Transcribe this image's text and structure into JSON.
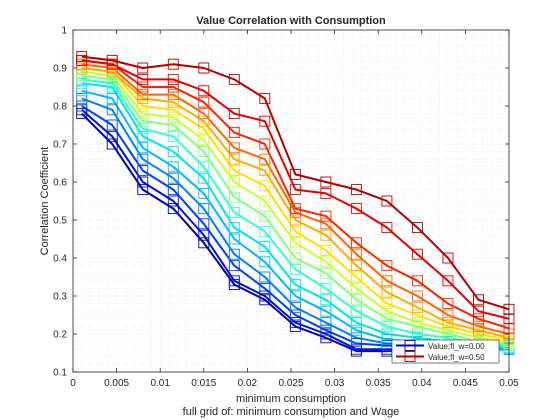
{
  "chart_data": {
    "type": "line",
    "title": "Value Correlation with Consumption",
    "xlabel": "minimum consumption",
    "ylabel": "Correlation Coefficient",
    "caption": "full grid of: minimum consumption and Wage",
    "xlim": [
      0,
      0.05
    ],
    "ylim": [
      0.1,
      1
    ],
    "xticks": [
      0,
      0.005,
      0.01,
      0.015,
      0.02,
      0.025,
      0.03,
      0.035,
      0.04,
      0.045,
      0.05
    ],
    "xtick_labels": [
      "0",
      "0.005",
      "0.01",
      "0.015",
      "0.02",
      "0.025",
      "0.03",
      "0.035",
      "0.04",
      "0.045",
      "0.05"
    ],
    "yticks": [
      0.1,
      0.2,
      0.3,
      0.4,
      0.5,
      0.6,
      0.7,
      0.8,
      0.9,
      1
    ],
    "ytick_labels": [
      "0.1",
      "0.2",
      "0.3",
      "0.4",
      "0.5",
      "0.6",
      "0.7",
      "0.8",
      "0.9",
      "1"
    ],
    "grid": "minor-dotted",
    "legend_position": "bottom-right",
    "legend": [
      "Value;fl_w=0.00",
      "Value;fl_w=0.50"
    ],
    "x": [
      0.001,
      0.0045,
      0.008,
      0.0115,
      0.015,
      0.0185,
      0.022,
      0.0255,
      0.029,
      0.0325,
      0.036,
      0.0395,
      0.043,
      0.0465,
      0.05
    ],
    "series": [
      {
        "color": "#0000b3",
        "values": [
          0.78,
          0.7,
          0.58,
          0.53,
          0.44,
          0.33,
          0.29,
          0.22,
          0.19,
          0.155,
          0.155,
          0.16,
          0.16,
          0.16,
          0.16
        ]
      },
      {
        "color": "#0010e0",
        "values": [
          0.79,
          0.72,
          0.6,
          0.55,
          0.46,
          0.34,
          0.3,
          0.23,
          0.2,
          0.16,
          0.16,
          0.165,
          0.165,
          0.16,
          0.16
        ]
      },
      {
        "color": "#0040ff",
        "values": [
          0.8,
          0.75,
          0.63,
          0.58,
          0.49,
          0.38,
          0.32,
          0.25,
          0.21,
          0.175,
          0.17,
          0.17,
          0.165,
          0.16,
          0.16
        ]
      },
      {
        "color": "#0080ff",
        "values": [
          0.82,
          0.79,
          0.66,
          0.61,
          0.53,
          0.41,
          0.35,
          0.27,
          0.23,
          0.19,
          0.175,
          0.175,
          0.17,
          0.16,
          0.16
        ]
      },
      {
        "color": "#00b8ff",
        "values": [
          0.84,
          0.82,
          0.69,
          0.64,
          0.57,
          0.45,
          0.39,
          0.3,
          0.26,
          0.21,
          0.185,
          0.18,
          0.17,
          0.165,
          0.16
        ]
      },
      {
        "color": "#00e5e5",
        "values": [
          0.86,
          0.85,
          0.72,
          0.68,
          0.61,
          0.48,
          0.43,
          0.33,
          0.29,
          0.23,
          0.2,
          0.19,
          0.18,
          0.17,
          0.165
        ]
      },
      {
        "color": "#33ffcc",
        "values": [
          0.87,
          0.86,
          0.74,
          0.72,
          0.64,
          0.52,
          0.47,
          0.37,
          0.32,
          0.26,
          0.22,
          0.2,
          0.19,
          0.175,
          0.17
        ]
      },
      {
        "color": "#80ff80",
        "values": [
          0.88,
          0.87,
          0.76,
          0.75,
          0.68,
          0.56,
          0.51,
          0.4,
          0.36,
          0.29,
          0.24,
          0.22,
          0.2,
          0.18,
          0.175
        ]
      },
      {
        "color": "#c8ff33",
        "values": [
          0.89,
          0.88,
          0.78,
          0.77,
          0.71,
          0.6,
          0.55,
          0.44,
          0.39,
          0.32,
          0.26,
          0.23,
          0.21,
          0.19,
          0.18
        ]
      },
      {
        "color": "#ffe000",
        "values": [
          0.9,
          0.89,
          0.8,
          0.79,
          0.74,
          0.63,
          0.59,
          0.47,
          0.42,
          0.35,
          0.28,
          0.25,
          0.22,
          0.2,
          0.185
        ]
      },
      {
        "color": "#ffaa00",
        "values": [
          0.9,
          0.89,
          0.82,
          0.81,
          0.76,
          0.66,
          0.63,
          0.5,
          0.46,
          0.38,
          0.31,
          0.27,
          0.23,
          0.21,
          0.19
        ]
      },
      {
        "color": "#ff6600",
        "values": [
          0.91,
          0.9,
          0.83,
          0.83,
          0.78,
          0.69,
          0.66,
          0.52,
          0.49,
          0.41,
          0.34,
          0.3,
          0.25,
          0.22,
          0.2
        ]
      },
      {
        "color": "#ff2200",
        "values": [
          0.92,
          0.91,
          0.85,
          0.85,
          0.81,
          0.73,
          0.7,
          0.53,
          0.51,
          0.44,
          0.38,
          0.34,
          0.28,
          0.24,
          0.215
        ]
      },
      {
        "color": "#e60000",
        "values": [
          0.92,
          0.91,
          0.87,
          0.87,
          0.84,
          0.78,
          0.76,
          0.58,
          0.57,
          0.53,
          0.48,
          0.41,
          0.34,
          0.26,
          0.24
        ]
      },
      {
        "color": "#b30000",
        "values": [
          0.93,
          0.92,
          0.9,
          0.91,
          0.9,
          0.87,
          0.82,
          0.62,
          0.6,
          0.58,
          0.55,
          0.48,
          0.4,
          0.29,
          0.265
        ]
      }
    ]
  }
}
